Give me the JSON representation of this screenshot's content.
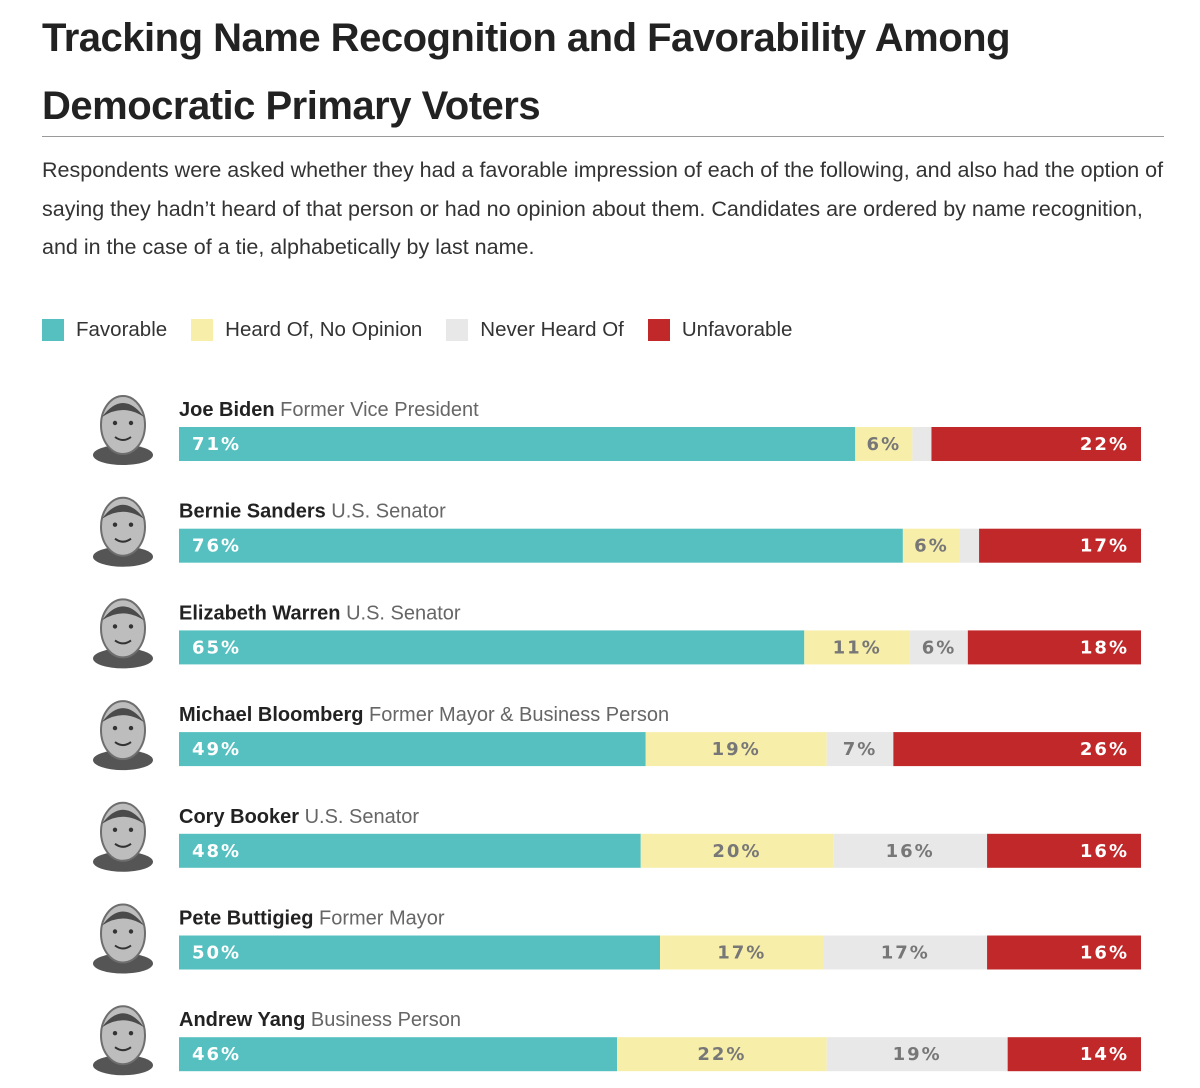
{
  "title": "Tracking Name Recognition and Favorability Among Democratic Primary Voters",
  "subtitle": "Respondents were asked whether they had a favorable impression of each of the following, and also had the option of saying they hadn’t heard of that person or had no opinion about them. Candidates are ordered by name recognition, and in the case of a tie, alphabetically by last name.",
  "colors": {
    "favorable": "#56c0c0",
    "no_opinion": "#f7eeaa",
    "never_heard": "#e8e8e8",
    "unfavorable": "#c0282a",
    "label_light": "#ffffff",
    "label_dark": "#777777"
  },
  "legend": [
    {
      "key": "favorable",
      "label": "Favorable"
    },
    {
      "key": "no_opinion",
      "label": "Heard Of, No Opinion"
    },
    {
      "key": "never_heard",
      "label": "Never Heard Of"
    },
    {
      "key": "unfavorable",
      "label": "Unfavorable"
    }
  ],
  "chart_data": {
    "type": "bar",
    "orientation": "horizontal-stacked-100",
    "series": [
      {
        "name": "Favorable",
        "key": "favorable",
        "values": [
          71,
          76,
          65,
          49,
          48,
          50,
          46
        ]
      },
      {
        "name": "Heard Of, No Opinion",
        "key": "no_opinion",
        "values": [
          6,
          6,
          11,
          19,
          20,
          17,
          22
        ]
      },
      {
        "name": "Never Heard Of",
        "key": "never_heard",
        "values": [
          2,
          2,
          6,
          7,
          16,
          17,
          19
        ]
      },
      {
        "name": "Unfavorable",
        "key": "unfavorable",
        "values": [
          22,
          17,
          18,
          26,
          16,
          16,
          14
        ]
      }
    ],
    "candidates": [
      {
        "name": "Joe Biden",
        "role": "Former Vice President",
        "labels": [
          "71%",
          "6%",
          "",
          "22%"
        ]
      },
      {
        "name": "Bernie Sanders",
        "role": "U.S. Senator",
        "labels": [
          "76%",
          "6%",
          "",
          "17%"
        ]
      },
      {
        "name": "Elizabeth Warren",
        "role": "U.S. Senator",
        "labels": [
          "65%",
          "11%",
          "6%",
          "18%"
        ]
      },
      {
        "name": "Michael Bloomberg",
        "role": "Former Mayor & Business Person",
        "labels": [
          "49%",
          "19%",
          "7%",
          "26%"
        ]
      },
      {
        "name": "Cory Booker",
        "role": "U.S. Senator",
        "labels": [
          "48%",
          "20%",
          "16%",
          "16%"
        ]
      },
      {
        "name": "Pete Buttigieg",
        "role": "Former Mayor",
        "labels": [
          "50%",
          "17%",
          "17%",
          "16%"
        ]
      },
      {
        "name": "Andrew Yang",
        "role": "Business Person",
        "labels": [
          "46%",
          "22%",
          "19%",
          "14%"
        ]
      }
    ]
  }
}
